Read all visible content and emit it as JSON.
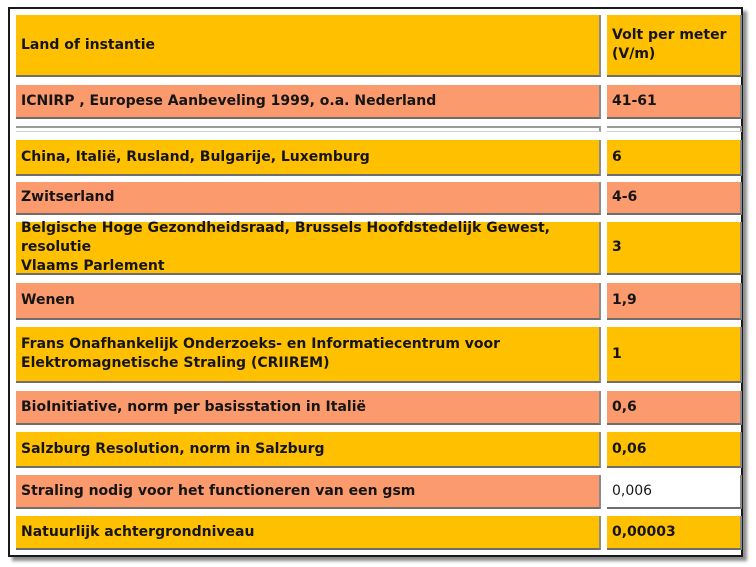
{
  "table": {
    "header": {
      "label": "Land of instantie",
      "value_line1": "Volt per meter",
      "value_line2": "(V/m)"
    },
    "rows": [
      {
        "label": "ICNIRP , Europese Aanbeveling 1999,  o.a. Nederland",
        "value": "41-61",
        "color": "#fb9a6c"
      },
      {
        "label": "",
        "value": "",
        "color": "#ffffff"
      },
      {
        "label": "China, Italië, Rusland, Bulgarije, Luxemburg",
        "value": "6",
        "color": "#ffc000"
      },
      {
        "label": "Zwitserland",
        "value": "4-6",
        "color": "#fb9a6c"
      },
      {
        "label_line1": "Belgische Hoge Gezondheidsraad, Brussels Hoofdstedelijk Gewest, resolutie",
        "label_line2": "Vlaams Parlement",
        "value": "3",
        "color": "#ffc000"
      },
      {
        "label": "Wenen",
        "value": "1,9",
        "color": "#fb9a6c"
      },
      {
        "label_line1": "Frans Onafhankelijk Onderzoeks- en Informatiecentrum voor",
        "label_line2": "Elektromagnetische Straling (CRIIREM)",
        "value": "1",
        "color": "#ffc000"
      },
      {
        "label": "BioInitiative, norm per basisstation in Italië",
        "value": "0,6",
        "color": "#fb9a6c"
      },
      {
        "label": "Salzburg Resolution, norm in Salzburg",
        "value": "0,06",
        "color": "#ffc000"
      },
      {
        "label": "Straling nodig voor het functioneren van een gsm",
        "value": "0,006",
        "color": "#fb9a6c",
        "value_color": "#ffffff"
      },
      {
        "label": "Natuurlijk achtergrondniveau",
        "value": "0,00003",
        "color": "#ffc000"
      }
    ]
  },
  "colors": {
    "orange": "#ffc000",
    "salmon": "#fb9a6c",
    "border": "#1a1a1a"
  }
}
